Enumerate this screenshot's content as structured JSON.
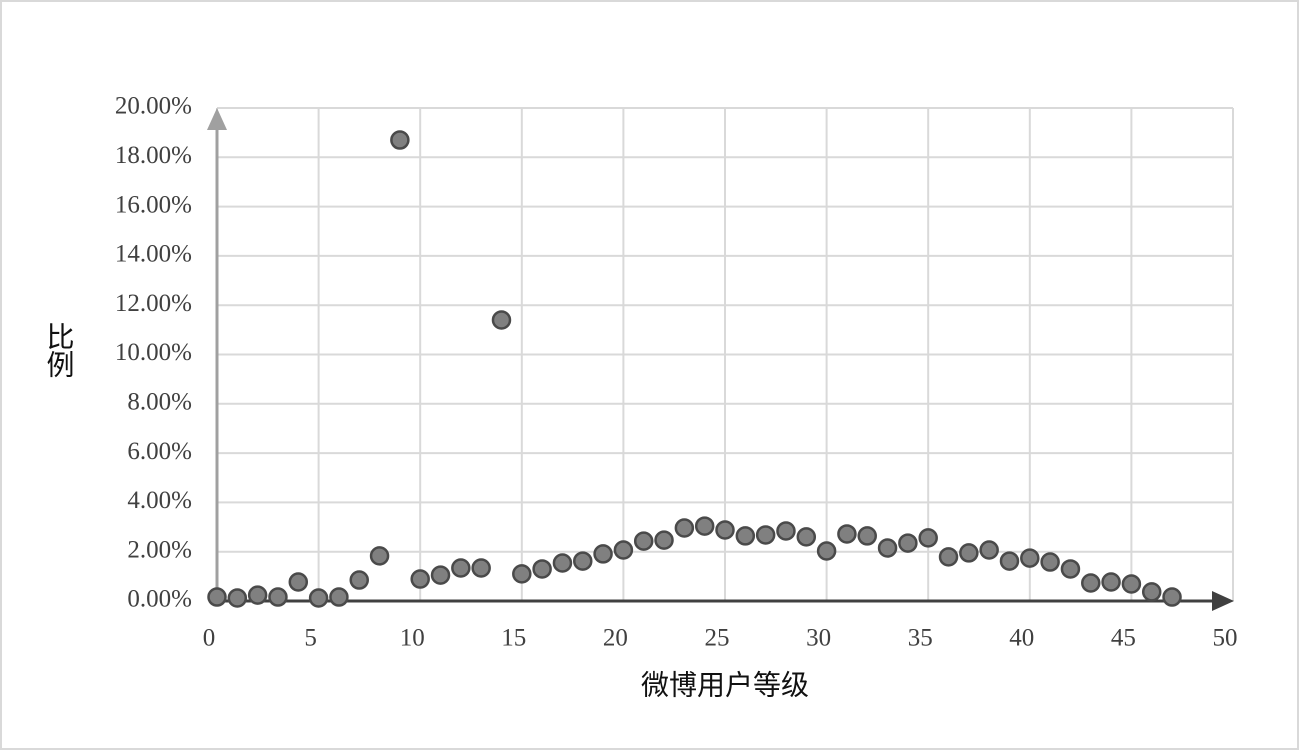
{
  "chart_data": {
    "type": "scatter",
    "x_label": "微博用户等级",
    "y_label": "比例",
    "x": [
      0,
      1,
      2,
      3,
      4,
      5,
      6,
      7,
      8,
      9,
      10,
      11,
      12,
      13,
      14,
      15,
      16,
      17,
      18,
      19,
      20,
      21,
      22,
      23,
      24,
      25,
      26,
      27,
      28,
      29,
      30,
      31,
      32,
      33,
      34,
      35,
      36,
      37,
      38,
      39,
      40,
      41,
      42,
      43,
      44,
      45,
      46,
      47
    ],
    "values": [
      0.16,
      0.12,
      0.24,
      0.16,
      0.77,
      0.12,
      0.16,
      0.85,
      1.83,
      18.7,
      0.89,
      1.05,
      1.34,
      1.34,
      11.4,
      1.1,
      1.3,
      1.54,
      1.62,
      1.91,
      2.07,
      2.43,
      2.47,
      2.96,
      3.04,
      2.88,
      2.64,
      2.68,
      2.84,
      2.6,
      2.03,
      2.72,
      2.64,
      2.15,
      2.35,
      2.56,
      1.79,
      1.95,
      2.07,
      1.62,
      1.74,
      1.58,
      1.3,
      0.73,
      0.77,
      0.69,
      0.37,
      0.16
    ],
    "color": "#808080",
    "xlim": [
      0,
      50
    ],
    "xticks": [
      0,
      5,
      10,
      15,
      20,
      25,
      30,
      35,
      40,
      45,
      50
    ],
    "ylim": [
      0,
      20
    ],
    "yticks": [
      {
        "value": 0,
        "label": "0.00%"
      },
      {
        "value": 2,
        "label": "2.00%"
      },
      {
        "value": 4,
        "label": "4.00%"
      },
      {
        "value": 6,
        "label": "6.00%"
      },
      {
        "value": 8,
        "label": "8.00%"
      },
      {
        "value": 10,
        "label": "10.00%"
      },
      {
        "value": 12,
        "label": "12.00%"
      },
      {
        "value": 14,
        "label": "14.00%"
      },
      {
        "value": 16,
        "label": "16.00%"
      },
      {
        "value": 18,
        "label": "18.00%"
      },
      {
        "value": 20,
        "label": "20.00%"
      }
    ],
    "grid": true
  }
}
